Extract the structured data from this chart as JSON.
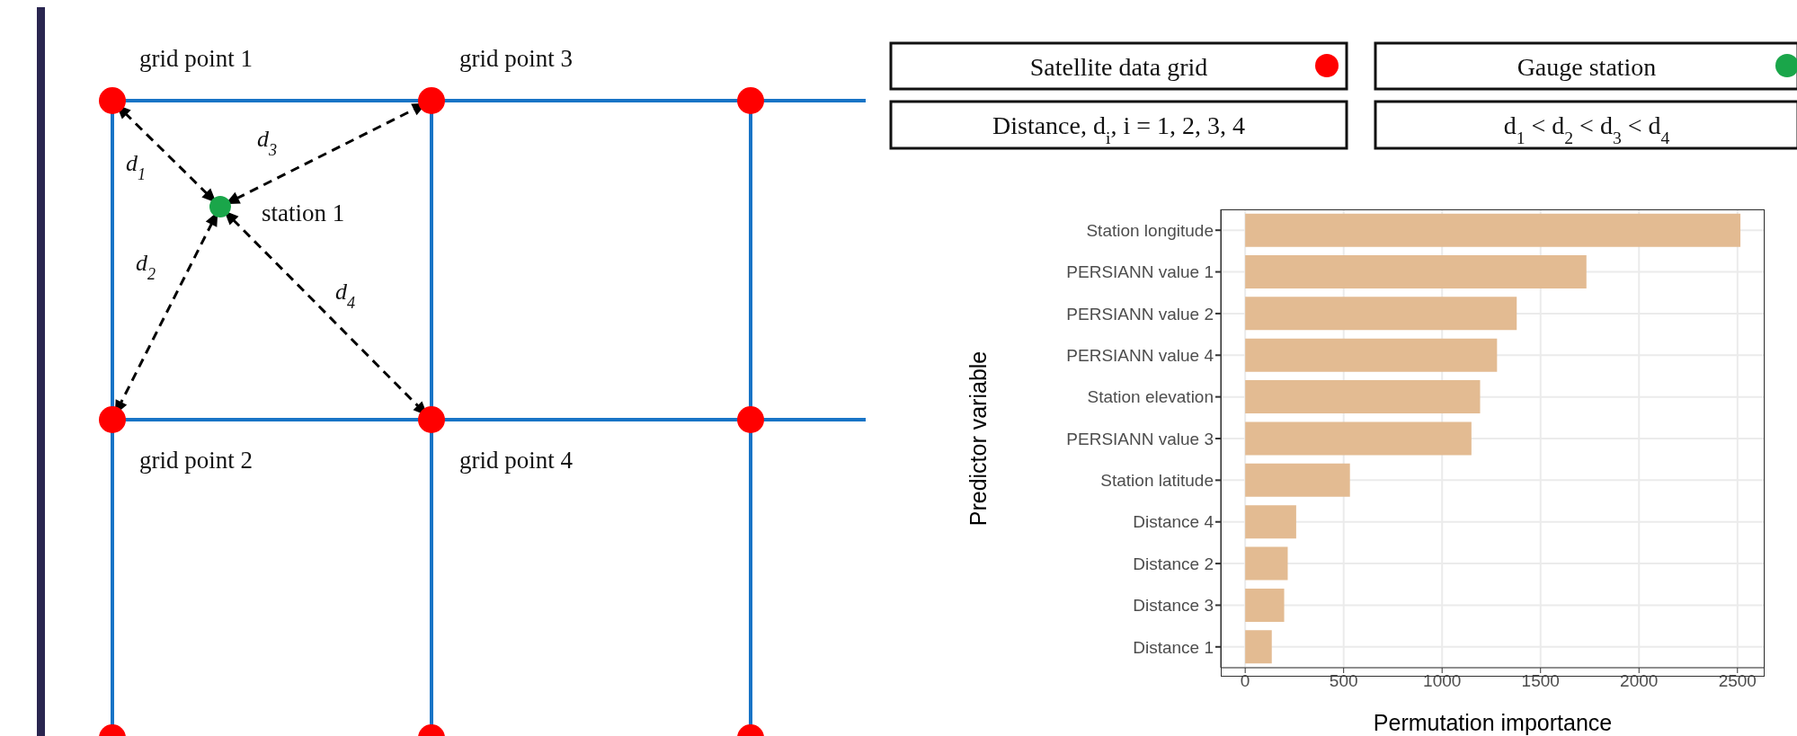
{
  "chart_data": {
    "type": "bar",
    "orientation": "horizontal",
    "categories": [
      "Station longitude",
      "PERSIANN value 1",
      "PERSIANN value 2",
      "PERSIANN value 4",
      "Station elevation",
      "PERSIANN value 3",
      "Station latitude",
      "Distance 4",
      "Distance 2",
      "Distance 3",
      "Distance 1"
    ],
    "values": [
      2515,
      1733,
      1379,
      1279,
      1193,
      1149,
      532,
      259,
      216,
      198,
      135
    ],
    "color": "#e3bb92",
    "xlim": [
      -124,
      2638
    ],
    "xticks": [
      0,
      500,
      1000,
      1500,
      2000,
      2500
    ],
    "xlabel": "Permutation importance",
    "ylabel": "Predictor variable",
    "grid": true,
    "annotations": [
      "grid point 1",
      "grid point 3",
      "station 1",
      "d$_{1}$",
      "d$_{3}$",
      "d$_{2}$",
      "d$_{4}$",
      "grid point 2",
      "grid point 4",
      "Satellite data grid",
      "Gauge station",
      "Distance, d$_{i}$, i = 1, 2, 3, 4",
      "d$_{1}$ < d$_{2}$ < d$_{3}$ < d$_{4}$"
    ]
  }
}
